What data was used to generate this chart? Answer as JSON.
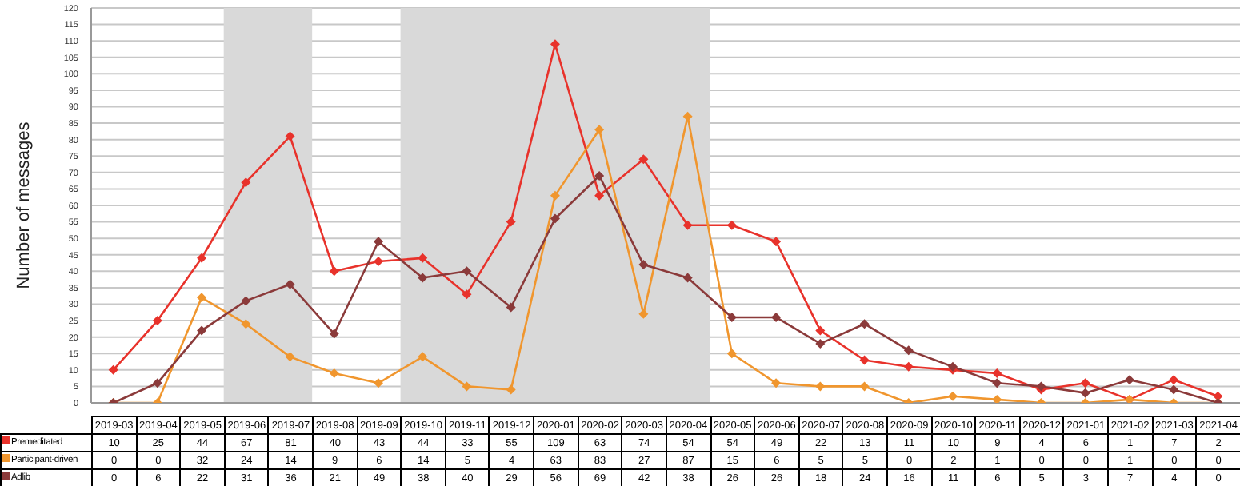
{
  "chart_data": {
    "type": "line",
    "ylabel": "Number of messages",
    "categories": [
      "2019-03",
      "2019-04",
      "2019-05",
      "2019-06",
      "2019-07",
      "2019-08",
      "2019-09",
      "2019-10",
      "2019-11",
      "2019-12",
      "2020-01",
      "2020-02",
      "2020-03",
      "2020-04",
      "2020-05",
      "2020-06",
      "2020-07",
      "2020-08",
      "2020-09",
      "2020-10",
      "2020-11",
      "2020-12",
      "2021-01",
      "2021-02",
      "2021-03",
      "2021-04"
    ],
    "series": [
      {
        "name": "Premeditated",
        "color": "#e8322b",
        "values": [
          10,
          25,
          44,
          67,
          81,
          40,
          43,
          44,
          33,
          55,
          109,
          63,
          74,
          54,
          54,
          49,
          22,
          13,
          11,
          10,
          9,
          4,
          6,
          1,
          7,
          2
        ]
      },
      {
        "name": "Participant-driven",
        "color": "#f0962e",
        "values": [
          0,
          0,
          32,
          24,
          14,
          9,
          6,
          14,
          5,
          4,
          63,
          83,
          27,
          87,
          15,
          6,
          5,
          5,
          0,
          2,
          1,
          0,
          0,
          1,
          0,
          0
        ]
      },
      {
        "name": "Adlib",
        "color": "#8b3a3a",
        "values": [
          0,
          6,
          22,
          31,
          36,
          21,
          49,
          38,
          40,
          29,
          56,
          69,
          42,
          38,
          26,
          26,
          18,
          24,
          16,
          11,
          6,
          5,
          3,
          7,
          4,
          0
        ]
      }
    ],
    "ylim": [
      0,
      120
    ],
    "yticks": [
      0,
      5,
      10,
      15,
      20,
      25,
      30,
      35,
      40,
      45,
      50,
      55,
      60,
      65,
      70,
      75,
      80,
      85,
      90,
      95,
      100,
      105,
      110,
      115,
      120
    ],
    "grid": "y",
    "marker": "diamond",
    "line_style": "solid",
    "legend": "bottom",
    "data_labels": true,
    "bands": [
      {
        "axis": "x",
        "from": "2019-06",
        "to": "2019-07",
        "color": "#d9d9d9"
      },
      {
        "axis": "x",
        "from": "2019-10",
        "to": "2020-04",
        "color": "#d9d9d9"
      }
    ]
  }
}
